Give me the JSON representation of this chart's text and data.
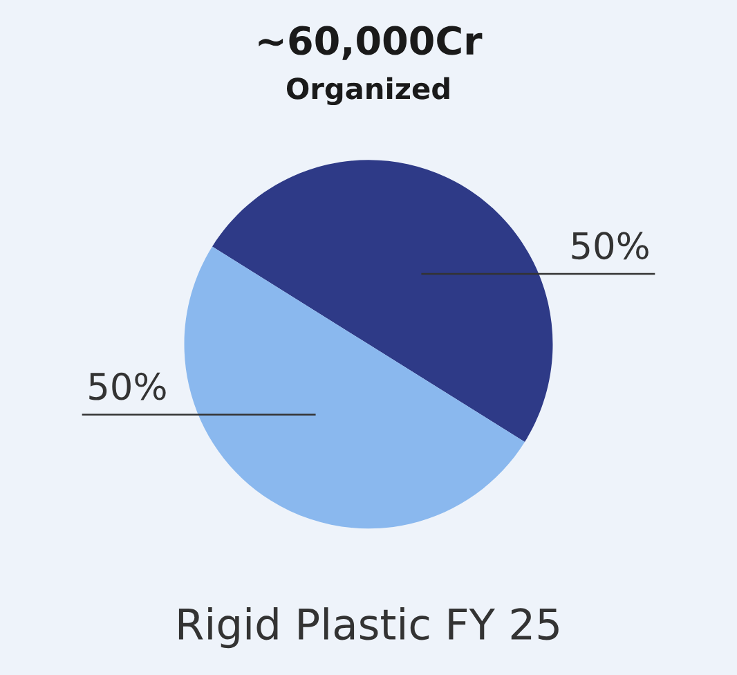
{
  "chart_data": {
    "type": "pie",
    "title": "~60,000Cr",
    "subtitle": "Organized",
    "categories": [
      null,
      null
    ],
    "values": [
      50,
      50
    ],
    "colors": [
      "#2e3a87",
      "#8ab8ee"
    ],
    "value_labels": [
      "50%",
      "50%"
    ],
    "annotations": [
      "Rigid Plastic FY 25"
    ]
  }
}
